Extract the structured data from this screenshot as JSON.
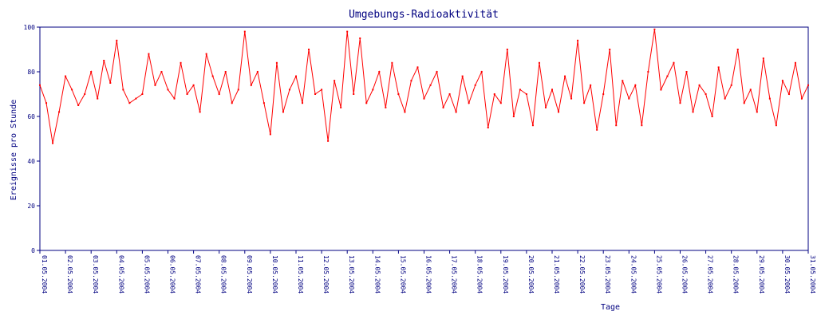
{
  "chart_data": {
    "type": "line",
    "title": "Umgebungs-Radioaktivität",
    "y_label": "Ereignisse pro Stunde",
    "x_label": "Tage",
    "color": "#ff0000",
    "xlim": [
      0,
      30
    ],
    "ylim": [
      0,
      100
    ],
    "yticks": [
      0,
      20,
      40,
      60,
      80,
      100
    ],
    "xticks": [
      {
        "value": 0,
        "label": "01.05.2004"
      },
      {
        "value": 1,
        "label": "02.05.2004"
      },
      {
        "value": 2,
        "label": "03.05.2004"
      },
      {
        "value": 3,
        "label": "04.05.2004"
      },
      {
        "value": 4,
        "label": "05.05.2004"
      },
      {
        "value": 5,
        "label": "06.05.2004"
      },
      {
        "value": 6,
        "label": "07.05.2004"
      },
      {
        "value": 7,
        "label": "08.05.2004"
      },
      {
        "value": 8,
        "label": "09.05.2004"
      },
      {
        "value": 9,
        "label": "10.05.2004"
      },
      {
        "value": 10,
        "label": "11.05.2004"
      },
      {
        "value": 11,
        "label": "12.05.2004"
      },
      {
        "value": 12,
        "label": "13.05.2004"
      },
      {
        "value": 13,
        "label": "14.05.2004"
      },
      {
        "value": 14,
        "label": "15.05.2004"
      },
      {
        "value": 15,
        "label": "16.05.2004"
      },
      {
        "value": 16,
        "label": "17.05.2004"
      },
      {
        "value": 17,
        "label": "18.05.2004"
      },
      {
        "value": 18,
        "label": "19.05.2004"
      },
      {
        "value": 19,
        "label": "20.05.2004"
      },
      {
        "value": 20,
        "label": "21.05.2004"
      },
      {
        "value": 21,
        "label": "22.05.2004"
      },
      {
        "value": 22,
        "label": "23.05.2004"
      },
      {
        "value": 23,
        "label": "24.05.2004"
      },
      {
        "value": 24,
        "label": "25.05.2004"
      },
      {
        "value": 25,
        "label": "26.05.2004"
      },
      {
        "value": 26,
        "label": "27.05.2004"
      },
      {
        "value": 27,
        "label": "28.05.2004"
      },
      {
        "value": 28,
        "label": "29.05.2004"
      },
      {
        "value": 29,
        "label": "30.05.2004"
      },
      {
        "value": 30,
        "label": "31.05.2004"
      }
    ],
    "x": [
      0,
      0.25,
      0.5,
      0.75,
      1,
      1.25,
      1.5,
      1.75,
      2,
      2.25,
      2.5,
      2.75,
      3,
      3.25,
      3.5,
      3.75,
      4,
      4.25,
      4.5,
      4.75,
      5,
      5.25,
      5.5,
      5.75,
      6,
      6.25,
      6.5,
      6.75,
      7,
      7.25,
      7.5,
      7.75,
      8,
      8.25,
      8.5,
      8.75,
      9,
      9.25,
      9.5,
      9.75,
      10,
      10.25,
      10.5,
      10.75,
      11,
      11.25,
      11.5,
      11.75,
      12,
      12.25,
      12.5,
      12.75,
      13,
      13.25,
      13.5,
      13.75,
      14,
      14.25,
      14.5,
      14.75,
      15,
      15.25,
      15.5,
      15.75,
      16,
      16.25,
      16.5,
      16.75,
      17,
      17.25,
      17.5,
      17.75,
      18,
      18.25,
      18.5,
      18.75,
      19,
      19.25,
      19.5,
      19.75,
      20,
      20.25,
      20.5,
      20.75,
      21,
      21.25,
      21.5,
      21.75,
      22,
      22.25,
      22.5,
      22.75,
      23,
      23.25,
      23.5,
      23.75,
      24,
      24.25,
      24.5,
      24.75,
      25,
      25.25,
      25.5,
      25.75,
      26,
      26.25,
      26.5,
      26.75,
      27,
      27.25,
      27.5,
      27.75,
      28,
      28.25,
      28.5,
      28.75,
      29,
      29.25,
      29.5,
      29.75,
      30
    ],
    "values": [
      74,
      66,
      48,
      62,
      78,
      72,
      65,
      70,
      80,
      68,
      85,
      75,
      94,
      72,
      66,
      68,
      70,
      88,
      74,
      80,
      72,
      68,
      84,
      70,
      74,
      62,
      88,
      78,
      70,
      80,
      66,
      72,
      98,
      74,
      80,
      66,
      52,
      84,
      62,
      72,
      78,
      66,
      90,
      70,
      72,
      49,
      76,
      64,
      98,
      70,
      95,
      66,
      72,
      80,
      64,
      84,
      70,
      62,
      76,
      82,
      68,
      74,
      80,
      64,
      70,
      62,
      78,
      66,
      74,
      80,
      55,
      70,
      66,
      90,
      60,
      72,
      70,
      56,
      84,
      64,
      72,
      62,
      78,
      68,
      94,
      66,
      74,
      54,
      70,
      90,
      56,
      76,
      68,
      74,
      56,
      80,
      99,
      72,
      78,
      84,
      66,
      80,
      62,
      74,
      70,
      60,
      82,
      68,
      74,
      90,
      66,
      72,
      62,
      86,
      68,
      56,
      76,
      70,
      84,
      68,
      74
    ]
  }
}
